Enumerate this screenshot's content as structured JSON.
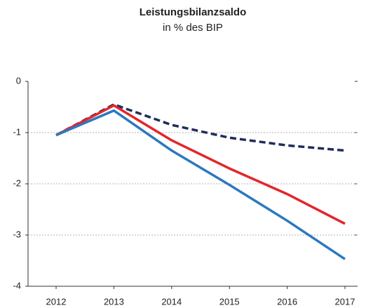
{
  "chart_data": {
    "type": "line",
    "title": "Leistungsbilanzsaldo",
    "subtitle": "in % des BIP",
    "categories": [
      "2012",
      "2013",
      "2014",
      "2015",
      "2016",
      "2017"
    ],
    "series": [
      {
        "color": "#1f2d5a",
        "line_style": "dashed",
        "values": [
          -1.05,
          -0.45,
          -0.85,
          -1.1,
          -1.25,
          -1.35
        ]
      },
      {
        "color": "#e3262a",
        "values": [
          -1.05,
          -0.47,
          -1.15,
          -1.7,
          -2.2,
          -2.78
        ]
      },
      {
        "color": "#2b78c0",
        "values": [
          -1.05,
          -0.57,
          -1.35,
          -2.02,
          -2.72,
          -3.47
        ]
      }
    ],
    "ylim": [
      -4,
      0
    ],
    "yticks": [
      -4,
      -3,
      -2,
      -1,
      0
    ],
    "grid": true
  }
}
